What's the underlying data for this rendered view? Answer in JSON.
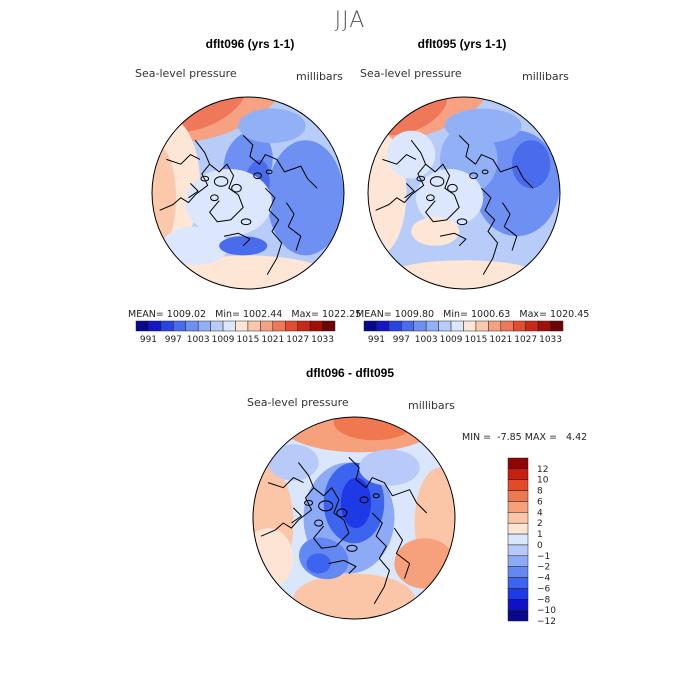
{
  "figure": {
    "season": "JJA"
  },
  "colors": {
    "abs_bar": [
      "#08088a",
      "#1414c8",
      "#2844e0",
      "#4a6cec",
      "#6e90f2",
      "#92b0f6",
      "#b8ccfa",
      "#dce6fc",
      "#fde6d6",
      "#fbc8ac",
      "#f6a282",
      "#f0785a",
      "#e44c30",
      "#c82818",
      "#a01008",
      "#6e0404"
    ],
    "diff_bar": [
      "#08088a",
      "#1010c8",
      "#1e3ae6",
      "#3c64ee",
      "#6488f2",
      "#8caaf6",
      "#b8cafa",
      "#dae6fc",
      "#fde4d4",
      "#fbc6a8",
      "#f6a07c",
      "#f07850",
      "#e44a28",
      "#c82010",
      "#900404"
    ],
    "coast": "#000000"
  },
  "chart_data": [
    {
      "type": "heatmap",
      "projection": "north-polar-stereographic",
      "title": "dflt096 (yrs 1-1)",
      "variable_label": "Sea-level pressure",
      "units_label": "millibars",
      "stats": {
        "mean_label": "MEAN=",
        "mean": "1009.02",
        "min_label": "Min=",
        "min": "1002.44",
        "max_label": "Max=",
        "max": "1022.25"
      },
      "colorbar": {
        "orientation": "horizontal",
        "ticks": [
          "991",
          "997",
          "1003",
          "1009",
          "1015",
          "1021",
          "1027",
          "1033"
        ]
      }
    },
    {
      "type": "heatmap",
      "projection": "north-polar-stereographic",
      "title": "dflt095 (yrs 1-1)",
      "variable_label": "Sea-level pressure",
      "units_label": "millibars",
      "stats": {
        "mean_label": "MEAN=",
        "mean": "1009.80",
        "min_label": "Min=",
        "min": "1000.63",
        "max_label": "Max=",
        "max": "1020.45"
      },
      "colorbar": {
        "orientation": "horizontal",
        "ticks": [
          "991",
          "997",
          "1003",
          "1009",
          "1015",
          "1021",
          "1027",
          "1033"
        ]
      }
    },
    {
      "type": "heatmap",
      "projection": "north-polar-stereographic",
      "title": "dflt096 - dflt095",
      "variable_label": "Sea-level pressure",
      "units_label": "millibars",
      "stats": {
        "min_label": "MIN =",
        "min": "-7.85",
        "max_label": "MAX =",
        "max": "4.42"
      },
      "colorbar": {
        "orientation": "vertical",
        "ticks": [
          "12",
          "10",
          "8",
          "6",
          "4",
          "2",
          "1",
          "0",
          "−1",
          "−2",
          "−4",
          "−6",
          "−8",
          "−10",
          "−12"
        ]
      }
    }
  ]
}
